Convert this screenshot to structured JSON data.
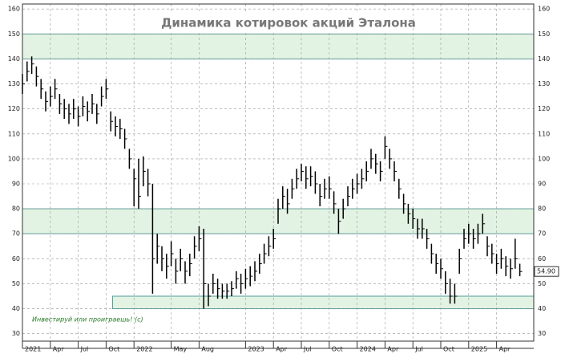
{
  "chart_data": {
    "type": "ohlc",
    "title": "Динамика котировок акций Эталона",
    "annotation": "Инвестируй или проиграешь! (c)",
    "price_label": "54.90",
    "color": "#000000",
    "band_color": "#e3f3e3",
    "band_edge": "#4f9e9a",
    "grid": true,
    "xlim": [
      0,
      55
    ],
    "xticks": [
      {
        "value": 0,
        "label": "2021"
      },
      {
        "value": 3,
        "label": "Apr"
      },
      {
        "value": 6,
        "label": "Jul"
      },
      {
        "value": 9,
        "label": "Oct"
      },
      {
        "value": 12,
        "label": "2022"
      },
      {
        "value": 16,
        "label": "May"
      },
      {
        "value": 19,
        "label": "Aug"
      },
      {
        "value": 24,
        "label": "2023"
      },
      {
        "value": 27,
        "label": "Apr"
      },
      {
        "value": 30,
        "label": "Jul"
      },
      {
        "value": 33,
        "label": "Oct"
      },
      {
        "value": 36,
        "label": "2024"
      },
      {
        "value": 39,
        "label": "Apr"
      },
      {
        "value": 42,
        "label": "Jul"
      },
      {
        "value": 45,
        "label": "Oct"
      },
      {
        "value": 48,
        "label": "2025"
      },
      {
        "value": 51,
        "label": "Apr"
      }
    ],
    "ylim": [
      27,
      162
    ],
    "yticks": [
      30,
      40,
      50,
      60,
      70,
      80,
      90,
      100,
      110,
      120,
      130,
      140,
      150,
      160
    ],
    "bands": [
      {
        "from": 140,
        "to": 150,
        "x_from": 0
      },
      {
        "from": 70,
        "to": 80,
        "x_from": 0
      },
      {
        "from": 40,
        "to": 45,
        "x_from": 9.7
      }
    ],
    "x": [
      0,
      0.5,
      1,
      1.5,
      2,
      2.5,
      3,
      3.5,
      4,
      4.5,
      5,
      5.5,
      6,
      6.5,
      7,
      7.5,
      8,
      8.5,
      9,
      9.5,
      10,
      10.5,
      11,
      11.5,
      12,
      12.5,
      13,
      13.5,
      14,
      14.5,
      15,
      15.5,
      16,
      16.5,
      17,
      17.5,
      18,
      18.5,
      19,
      19.5,
      20,
      20.5,
      21,
      21.5,
      22,
      22.5,
      23,
      23.5,
      24,
      24.5,
      25,
      25.5,
      26,
      26.5,
      27,
      27.5,
      28,
      28.5,
      29,
      29.5,
      30,
      30.5,
      31,
      31.5,
      32,
      32.5,
      33,
      33.5,
      34,
      34.5,
      35,
      35.5,
      36,
      36.5,
      37,
      37.5,
      38,
      38.5,
      39,
      39.5,
      40,
      40.5,
      41,
      41.5,
      42,
      42.5,
      43,
      43.5,
      44,
      44.5,
      45,
      45.5,
      46,
      46.5,
      47,
      47.5,
      48,
      48.5,
      49,
      49.5,
      50,
      50.5,
      51,
      51.5,
      52,
      52.5,
      53,
      53.5
    ],
    "high": [
      134,
      139,
      141,
      137,
      132,
      127,
      129,
      132,
      126,
      124,
      122,
      124,
      121,
      125,
      123,
      126,
      122,
      129,
      132,
      119,
      117,
      116,
      112,
      104,
      96,
      100,
      101,
      96,
      90,
      70,
      65,
      62,
      67,
      60,
      64,
      59,
      62,
      69,
      73,
      72,
      50,
      54,
      52,
      50,
      50,
      51,
      55,
      54,
      56,
      57,
      59,
      62,
      66,
      69,
      72,
      84,
      89,
      88,
      92,
      96,
      98,
      97,
      97,
      95,
      90,
      92,
      93,
      87,
      80,
      84,
      89,
      92,
      94,
      96,
      99,
      104,
      102,
      99,
      109,
      104,
      99,
      92,
      86,
      82,
      80,
      76,
      76,
      72,
      66,
      62,
      60,
      55,
      52,
      50,
      64,
      72,
      74,
      72,
      74,
      78,
      69,
      66,
      62,
      64,
      61,
      60,
      68,
      58
    ],
    "low": [
      126,
      131,
      134,
      129,
      124,
      119,
      121,
      124,
      118,
      116,
      114,
      116,
      113,
      117,
      115,
      118,
      114,
      121,
      124,
      111,
      109,
      108,
      104,
      96,
      81,
      80,
      89,
      85,
      46,
      58,
      55,
      52,
      57,
      50,
      55,
      50,
      53,
      60,
      63,
      40,
      41,
      46,
      44,
      44,
      44,
      45,
      48,
      46,
      48,
      49,
      51,
      54,
      58,
      61,
      64,
      74,
      80,
      78,
      84,
      88,
      91,
      88,
      89,
      86,
      81,
      84,
      84,
      78,
      70,
      76,
      81,
      84,
      86,
      88,
      91,
      96,
      94,
      91,
      100,
      96,
      91,
      84,
      78,
      74,
      72,
      68,
      68,
      64,
      58,
      54,
      52,
      46,
      42,
      42,
      54,
      64,
      66,
      64,
      66,
      70,
      61,
      58,
      54,
      56,
      53,
      52,
      56,
      53
    ],
    "close": [
      130,
      135,
      138,
      133,
      128,
      123,
      125,
      128,
      122,
      120,
      118,
      120,
      117,
      121,
      119,
      122,
      118,
      125,
      128,
      115,
      113,
      112,
      108,
      100,
      92,
      85,
      95,
      90,
      60,
      65,
      60,
      57,
      62,
      55,
      60,
      55,
      58,
      65,
      68,
      50,
      45,
      50,
      48,
      47,
      47,
      48,
      52,
      50,
      52,
      53,
      55,
      58,
      62,
      65,
      68,
      80,
      85,
      82,
      88,
      92,
      95,
      92,
      93,
      90,
      85,
      88,
      88,
      82,
      75,
      80,
      85,
      88,
      90,
      92,
      95,
      100,
      98,
      95,
      105,
      100,
      95,
      88,
      82,
      78,
      76,
      72,
      72,
      68,
      62,
      58,
      56,
      50,
      45,
      45,
      60,
      68,
      70,
      68,
      70,
      74,
      65,
      62,
      58,
      60,
      57,
      56,
      60,
      54.9
    ]
  }
}
